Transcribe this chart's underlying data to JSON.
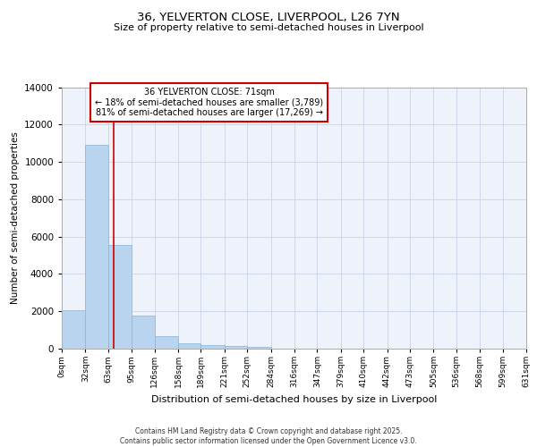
{
  "title1": "36, YELVERTON CLOSE, LIVERPOOL, L26 7YN",
  "title2": "Size of property relative to semi-detached houses in Liverpool",
  "xlabel": "Distribution of semi-detached houses by size in Liverpool",
  "ylabel": "Number of semi-detached properties",
  "property_size": 71,
  "annotation_title": "36 YELVERTON CLOSE: 71sqm",
  "annotation_line1": "← 18% of semi-detached houses are smaller (3,789)",
  "annotation_line2": "81% of semi-detached houses are larger (17,269) →",
  "footer1": "Contains HM Land Registry data © Crown copyright and database right 2025.",
  "footer2": "Contains public sector information licensed under the Open Government Licence v3.0.",
  "bar_color": "#b8d4ee",
  "bar_edge_color": "#8ab4d8",
  "red_line_color": "#cc0000",
  "annotation_box_color": "#cc0000",
  "grid_color": "#c8d4e8",
  "background_color": "#eef2fa",
  "bin_edges": [
    0,
    32,
    63,
    95,
    126,
    158,
    189,
    221,
    252,
    284,
    316,
    347,
    379,
    410,
    442,
    473,
    505,
    536,
    568,
    599,
    631
  ],
  "bin_labels": [
    "0sqm",
    "32sqm",
    "63sqm",
    "95sqm",
    "126sqm",
    "158sqm",
    "189sqm",
    "221sqm",
    "252sqm",
    "284sqm",
    "316sqm",
    "347sqm",
    "379sqm",
    "410sqm",
    "442sqm",
    "473sqm",
    "505sqm",
    "536sqm",
    "568sqm",
    "599sqm",
    "631sqm"
  ],
  "bar_values": [
    2050,
    10900,
    5550,
    1750,
    650,
    310,
    200,
    140,
    100,
    0,
    0,
    0,
    0,
    0,
    0,
    0,
    0,
    0,
    0,
    0
  ],
  "ylim": [
    0,
    14000
  ],
  "yticks": [
    0,
    2000,
    4000,
    6000,
    8000,
    10000,
    12000,
    14000
  ]
}
